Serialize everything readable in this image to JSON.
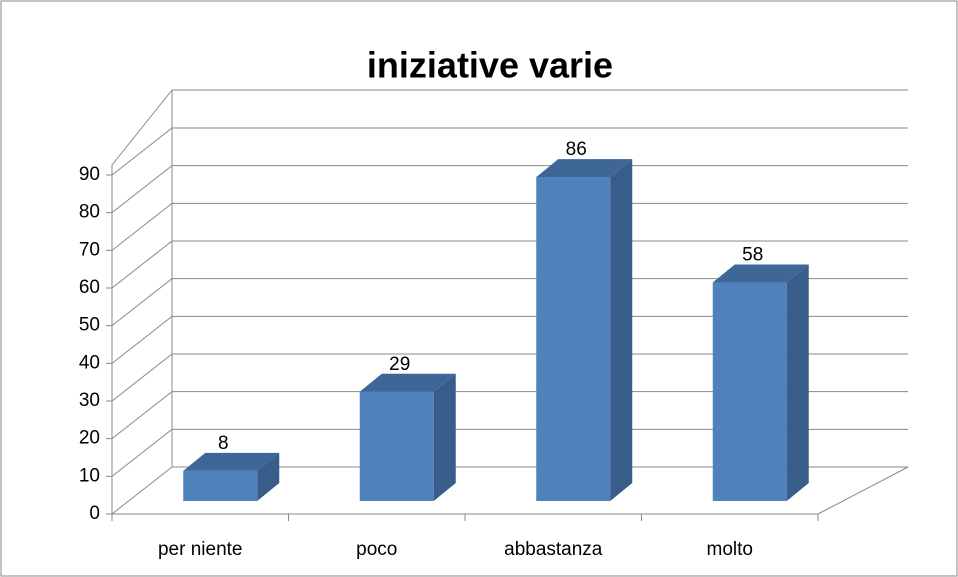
{
  "chart_data": {
    "type": "bar",
    "title": "iniziative varie",
    "categories": [
      "per niente",
      "poco",
      "abbastanza",
      "molto"
    ],
    "values": [
      8,
      29,
      86,
      58
    ],
    "color": "#4f81bd",
    "ylim": [
      0,
      90
    ],
    "yticks": [
      0,
      10,
      20,
      30,
      40,
      50,
      60,
      70,
      80,
      90
    ],
    "grid": true
  }
}
